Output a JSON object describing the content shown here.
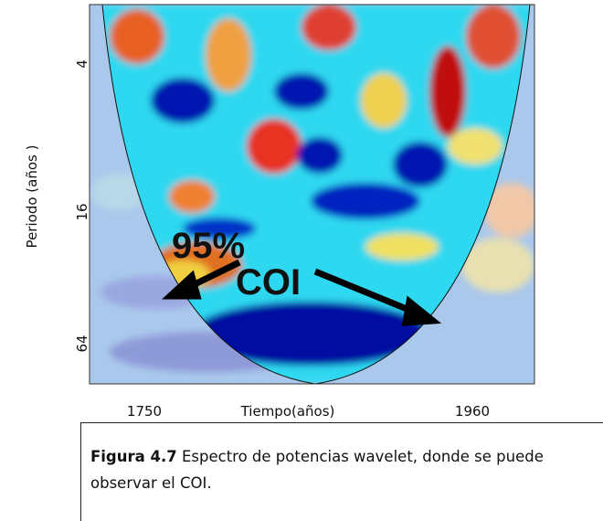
{
  "figure": {
    "yticks": [
      4,
      16,
      64
    ],
    "xticks": [
      1750,
      1960
    ],
    "x_label": "Tiempo(años)",
    "y_label": "Periodo (años )",
    "annotations": [
      "95%",
      "COI"
    ]
  },
  "caption": {
    "label": "Figura 4.7",
    "text": "Espectro de potencias wavelet, donde se puede observar el COI."
  }
}
